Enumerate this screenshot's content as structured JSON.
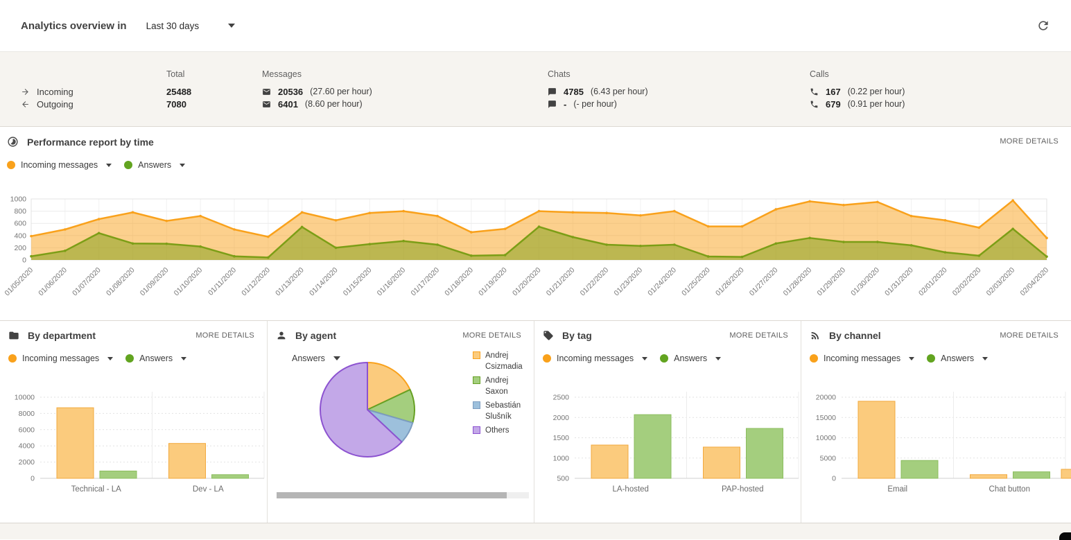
{
  "colors": {
    "accent_orange": "#F9A11B",
    "accent_green": "#62A420",
    "area_orange": "#F9A11B",
    "area_green": "#7C9E16",
    "bar_orange_fill": "#FBCB7D",
    "bar_orange_stroke": "#F2A93E",
    "bar_green_fill": "#A4CE7E",
    "bar_green_stroke": "#8BBD5E",
    "stats_bg": "#F6F4F0"
  },
  "header": {
    "title": "Analytics overview in",
    "range_value": "Last 30 days"
  },
  "stats": {
    "col_headers": {
      "total": "Total",
      "messages": "Messages",
      "chats": "Chats",
      "calls": "Calls"
    },
    "rows": [
      {
        "label": "Incoming",
        "total": "25488",
        "messages_value": "20536",
        "messages_rate": "(27.60 per hour)",
        "chats_value": "4785",
        "chats_rate": "(6.43 per hour)",
        "calls_value": "167",
        "calls_rate": "(0.22 per hour)"
      },
      {
        "label": "Outgoing",
        "total": "7080",
        "messages_value": "6401",
        "messages_rate": "(8.60 per hour)",
        "chats_value": "-",
        "chats_rate": "(- per hour)",
        "calls_value": "679",
        "calls_rate": "(0.91 per hour)"
      }
    ]
  },
  "performance_panel": {
    "title": "Performance report by time",
    "more_details": "MORE DETAILS",
    "legend": [
      {
        "label": "Incoming messages"
      },
      {
        "label": "Answers"
      }
    ]
  },
  "panels": [
    {
      "title": "By department",
      "more_details": "MORE DETAILS",
      "legend": [
        {
          "label": "Incoming messages"
        },
        {
          "label": "Answers"
        }
      ]
    },
    {
      "title": "By agent",
      "more_details": "MORE DETAILS",
      "selector_label": "Answers"
    },
    {
      "title": "By tag",
      "more_details": "MORE DETAILS",
      "legend": [
        {
          "label": "Incoming messages"
        },
        {
          "label": "Answers"
        }
      ]
    },
    {
      "title": "By channel",
      "more_details": "MORE DETAILS",
      "legend": [
        {
          "label": "Incoming messages"
        },
        {
          "label": "Answers"
        }
      ]
    }
  ],
  "chart_data": [
    {
      "id": "performance",
      "type": "area",
      "title": "Performance report by time",
      "x": [
        "01/05/2020",
        "01/06/2020",
        "01/07/2020",
        "01/08/2020",
        "01/09/2020",
        "01/10/2020",
        "01/11/2020",
        "01/12/2020",
        "01/13/2020",
        "01/14/2020",
        "01/15/2020",
        "01/16/2020",
        "01/17/2020",
        "01/18/2020",
        "01/19/2020",
        "01/20/2020",
        "01/21/2020",
        "01/22/2020",
        "01/23/2020",
        "01/24/2020",
        "01/25/2020",
        "01/26/2020",
        "01/27/2020",
        "01/28/2020",
        "01/29/2020",
        "01/30/2020",
        "01/31/2020",
        "02/01/2020",
        "02/02/2020",
        "02/03/2020",
        "02/04/2020"
      ],
      "series": [
        {
          "name": "Incoming messages",
          "color": "#F9A11B",
          "values": [
            390,
            500,
            670,
            780,
            640,
            720,
            500,
            380,
            780,
            650,
            770,
            800,
            720,
            455,
            510,
            800,
            780,
            770,
            730,
            800,
            550,
            550,
            830,
            960,
            900,
            950,
            720,
            650,
            530,
            975,
            360
          ]
        },
        {
          "name": "Answers",
          "color": "#7C9E16",
          "values": [
            60,
            150,
            440,
            270,
            265,
            220,
            60,
            40,
            540,
            200,
            260,
            310,
            250,
            70,
            80,
            545,
            375,
            250,
            230,
            250,
            57,
            50,
            270,
            360,
            295,
            295,
            240,
            125,
            70,
            510,
            55
          ]
        }
      ],
      "ylim": [
        0,
        1000
      ],
      "yticks": [
        0,
        200,
        400,
        600,
        800,
        1000
      ],
      "grid": true,
      "legend_position": "top-left"
    },
    {
      "id": "by_department",
      "type": "bar",
      "title": "By department",
      "categories": [
        "Technical - LA",
        "Dev - LA"
      ],
      "series": [
        {
          "name": "Incoming messages",
          "values": [
            8700,
            4300
          ]
        },
        {
          "name": "Answers",
          "values": [
            900,
            450
          ]
        }
      ],
      "ylim": [
        0,
        10000
      ],
      "yticks": [
        0,
        2000,
        4000,
        6000,
        8000,
        10000
      ],
      "grid": true
    },
    {
      "id": "by_agent",
      "type": "pie",
      "title": "By agent",
      "metric": "Answers",
      "slices": [
        {
          "label": "Andrej Csizmadia",
          "pct": 18,
          "fill": "#FBCB7D",
          "stroke": "#F9A11B"
        },
        {
          "label": "Andrej Saxon",
          "pct": 11.5,
          "fill": "#A4CE7E",
          "stroke": "#66A023"
        },
        {
          "label": "Sebastián Slušník",
          "pct": 7.5,
          "fill": "#9DC0DC",
          "stroke": "#7C9CC0"
        },
        {
          "label": "Others",
          "pct": 63,
          "fill": "#C3A8E8",
          "stroke": "#8C52D0"
        }
      ],
      "legend_position": "right"
    },
    {
      "id": "by_tag",
      "type": "bar",
      "title": "By tag",
      "categories": [
        "LA-hosted",
        "PAP-hosted"
      ],
      "series": [
        {
          "name": "Incoming messages",
          "values": [
            1320,
            1270
          ]
        },
        {
          "name": "Answers",
          "values": [
            2070,
            1730
          ]
        }
      ],
      "ylim": [
        500,
        2500
      ],
      "yticks": [
        500,
        1000,
        1500,
        2000,
        2500
      ],
      "grid": true
    },
    {
      "id": "by_channel",
      "type": "bar",
      "title": "By channel",
      "categories": [
        "Email",
        "Chat button"
      ],
      "series": [
        {
          "name": "Incoming messages",
          "values": [
            19000,
            900
          ]
        },
        {
          "name": "Answers",
          "values": [
            4400,
            1600
          ]
        }
      ],
      "ylim": [
        0,
        20000
      ],
      "yticks": [
        0,
        5000,
        10000,
        15000,
        20000
      ],
      "grid": true,
      "clipped_extra_bar": true
    }
  ]
}
